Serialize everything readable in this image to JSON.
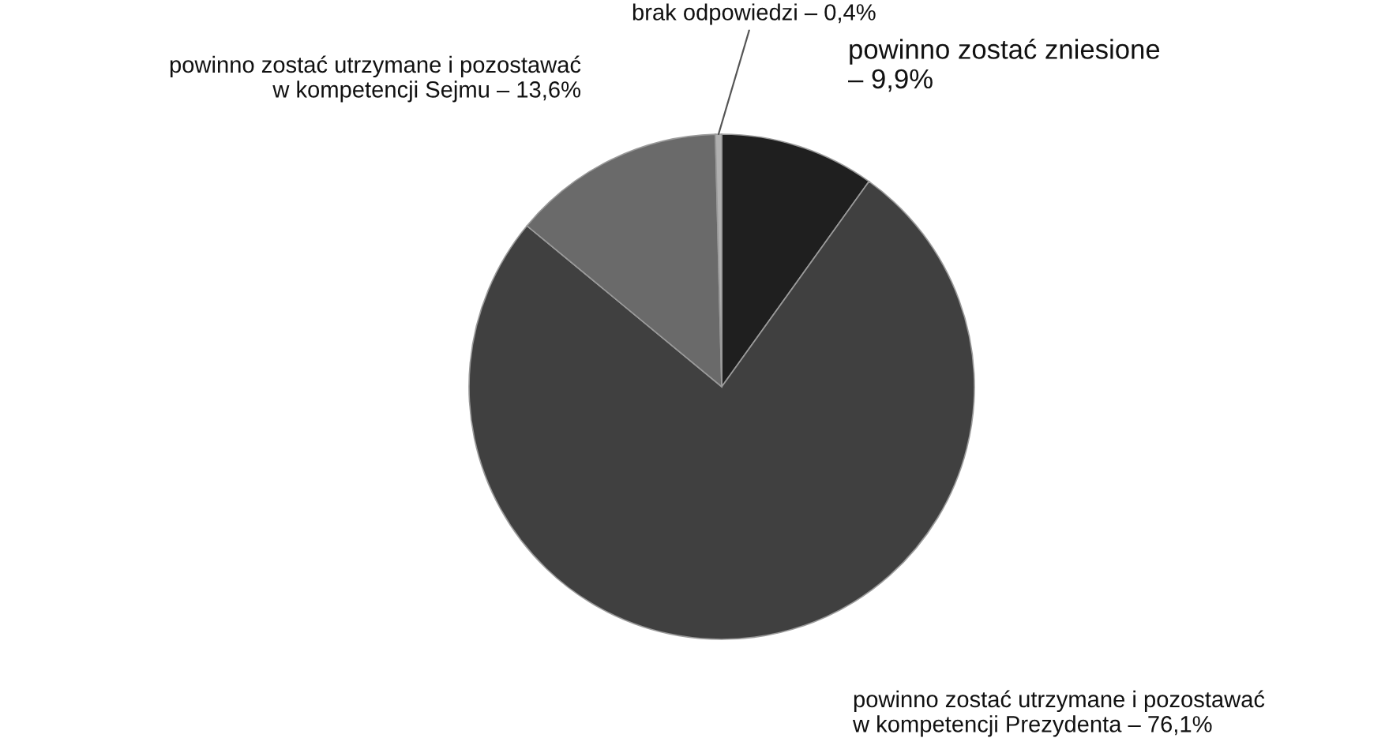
{
  "chart_data": {
    "type": "pie",
    "categories": [
      "powinno zostać zniesione\n– 9,9%",
      "powinno zostać utrzymane i pozostawać\nw kompetencji Prezydenta – 76,1%",
      "powinno zostać utrzymane i pozostawać\nw kompetencji Sejmu – 13,6%",
      "brak odpowiedzi – 0,4%"
    ],
    "values": [
      9.9,
      76.1,
      13.6,
      0.4
    ],
    "colors": [
      "#1f1f1f",
      "#404040",
      "#6a6a6a",
      "#b0b0b0"
    ]
  }
}
